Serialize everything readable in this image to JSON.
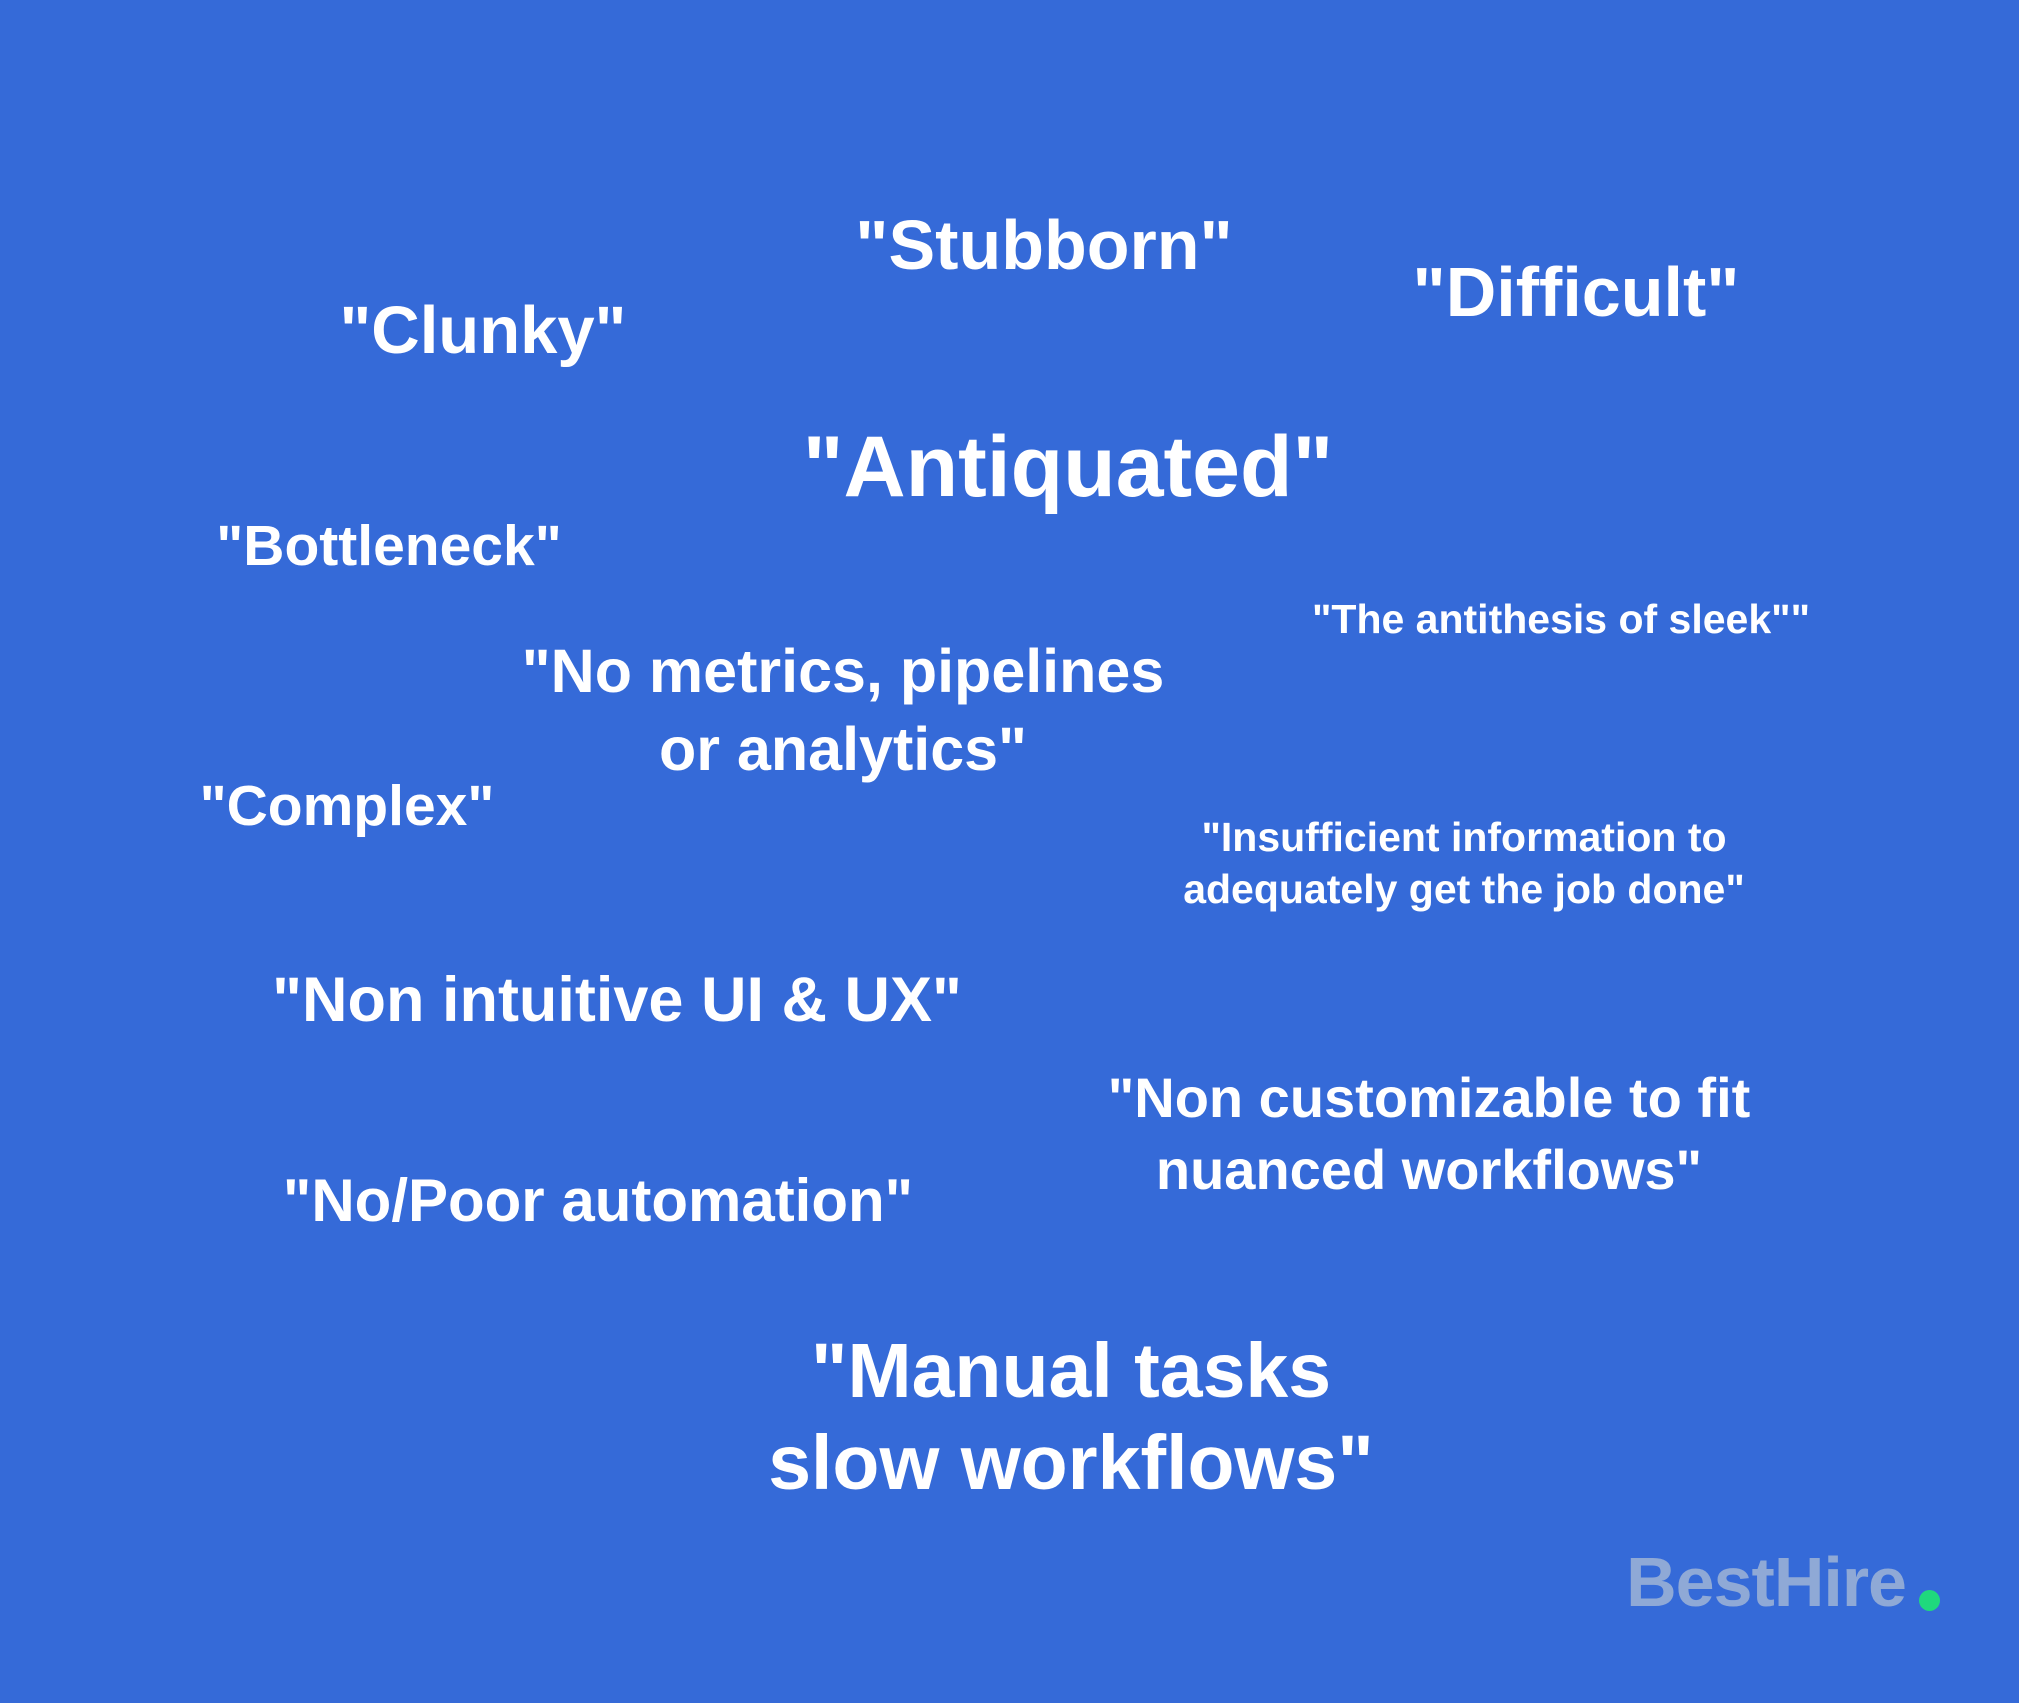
{
  "phrases": {
    "stubborn": "\"Stubborn\"",
    "difficult": "\"Difficult\"",
    "clunky": "\"Clunky\"",
    "antiquated": "\"Antiquated\"",
    "bottleneck": "\"Bottleneck\"",
    "antithesis": "\"The antithesis of sleek\"\"",
    "metrics_line1": "\"No metrics, pipelines",
    "metrics_line2": "or analytics\"",
    "complex": "\"Complex\"",
    "insufficient_line1": "\"Insufficient information to",
    "insufficient_line2": "adequately get the job done\"",
    "non_intuitive": "\"Non intuitive UI & UX\"",
    "customizable_line1": "\"Non customizable to fit",
    "customizable_line2": "nuanced workflows\"",
    "automation": "\"No/Poor automation\"",
    "manual_line1": "\"Manual tasks",
    "manual_line2": "slow workflows\""
  },
  "brand": {
    "name": "BestHire",
    "dot_color": "#1fd97d",
    "text_color": "#8fa9d6"
  },
  "colors": {
    "background": "#356ad8",
    "text": "#ffffff"
  }
}
